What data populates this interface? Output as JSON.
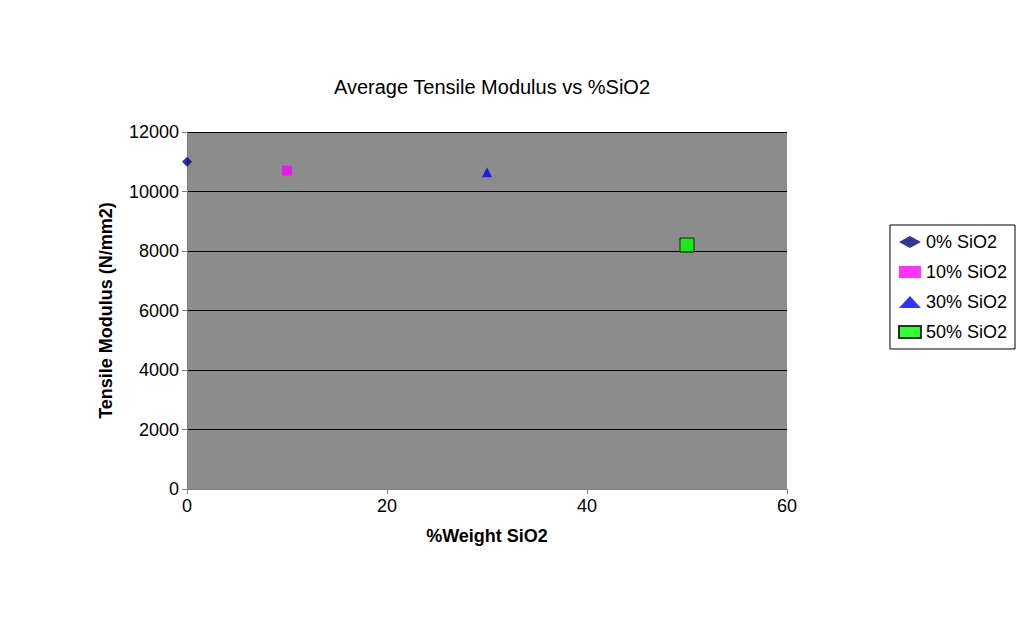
{
  "chart_data": {
    "type": "scatter",
    "title": "Average Tensile Modulus vs %SiO2",
    "x_label": "%Weight SiO2",
    "y_label": "Tensile Modulus (N/mm2)",
    "series": [
      {
        "name": "0% SiO2",
        "color": "#000080",
        "marker": "diamond",
        "x": [
          0
        ],
        "values": [
          11000
        ]
      },
      {
        "name": "10% SiO2",
        "color": "#ff00ff",
        "marker": "square",
        "x": [
          10
        ],
        "values": [
          10700
        ]
      },
      {
        "name": "30% SiO2",
        "color": "#0000ff",
        "marker": "triangle",
        "x": [
          30
        ],
        "values": [
          10650
        ]
      },
      {
        "name": "50% SiO2",
        "color": "#00ff00",
        "marker": "square",
        "x": [
          50
        ],
        "values": [
          8200
        ]
      }
    ],
    "xlim": [
      0,
      60
    ],
    "xticks": [
      0,
      20,
      40,
      60
    ],
    "ylim": [
      0,
      12000
    ],
    "yticks": [
      0,
      2000,
      4000,
      6000,
      8000,
      10000,
      12000
    ],
    "grid": true,
    "legend": "right"
  }
}
